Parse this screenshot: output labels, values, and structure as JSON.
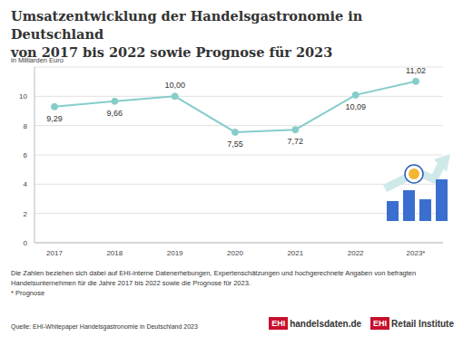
{
  "chart_data": {
    "type": "line",
    "title": "Umsatzentwicklung der Handelsgastronomie in Deutschland\nvon 2017 bis 2022 sowie Prognose für 2023",
    "subtitle": "in Milliarden Euro",
    "categories": [
      "2017",
      "2018",
      "2019",
      "2020",
      "2021",
      "2022",
      "2023*"
    ],
    "values": [
      9.29,
      9.66,
      10.0,
      7.55,
      7.72,
      10.09,
      11.02
    ],
    "value_labels": [
      "9,29",
      "9,66",
      "10,00",
      "7,55",
      "7,72",
      "10,09",
      "11,02"
    ],
    "color": "#86cdca",
    "marker": "circle",
    "ylim": [
      0,
      12
    ],
    "yticks": [
      0,
      2,
      4,
      6,
      8,
      10
    ],
    "grid": true,
    "data_labels": true,
    "notes": [
      "Die Zahlen beziehen sich dabei auf EHI-interne Datenerhebungen, Expertenschätzungen und hochgerechnete Angaben von befragten Handelsunternehmen für die Jahre 2017 bis 2022 sowie die Prognose für 2023.",
      "* Prognose"
    ],
    "source": "Quelle: EHI-Whitepaper Handelsgastronomie in Deutschland 2023",
    "logos": [
      {
        "badge": "EHI",
        "text": "handelsdaten.de"
      },
      {
        "badge": "EHI",
        "text": "Retail Institute"
      }
    ]
  }
}
